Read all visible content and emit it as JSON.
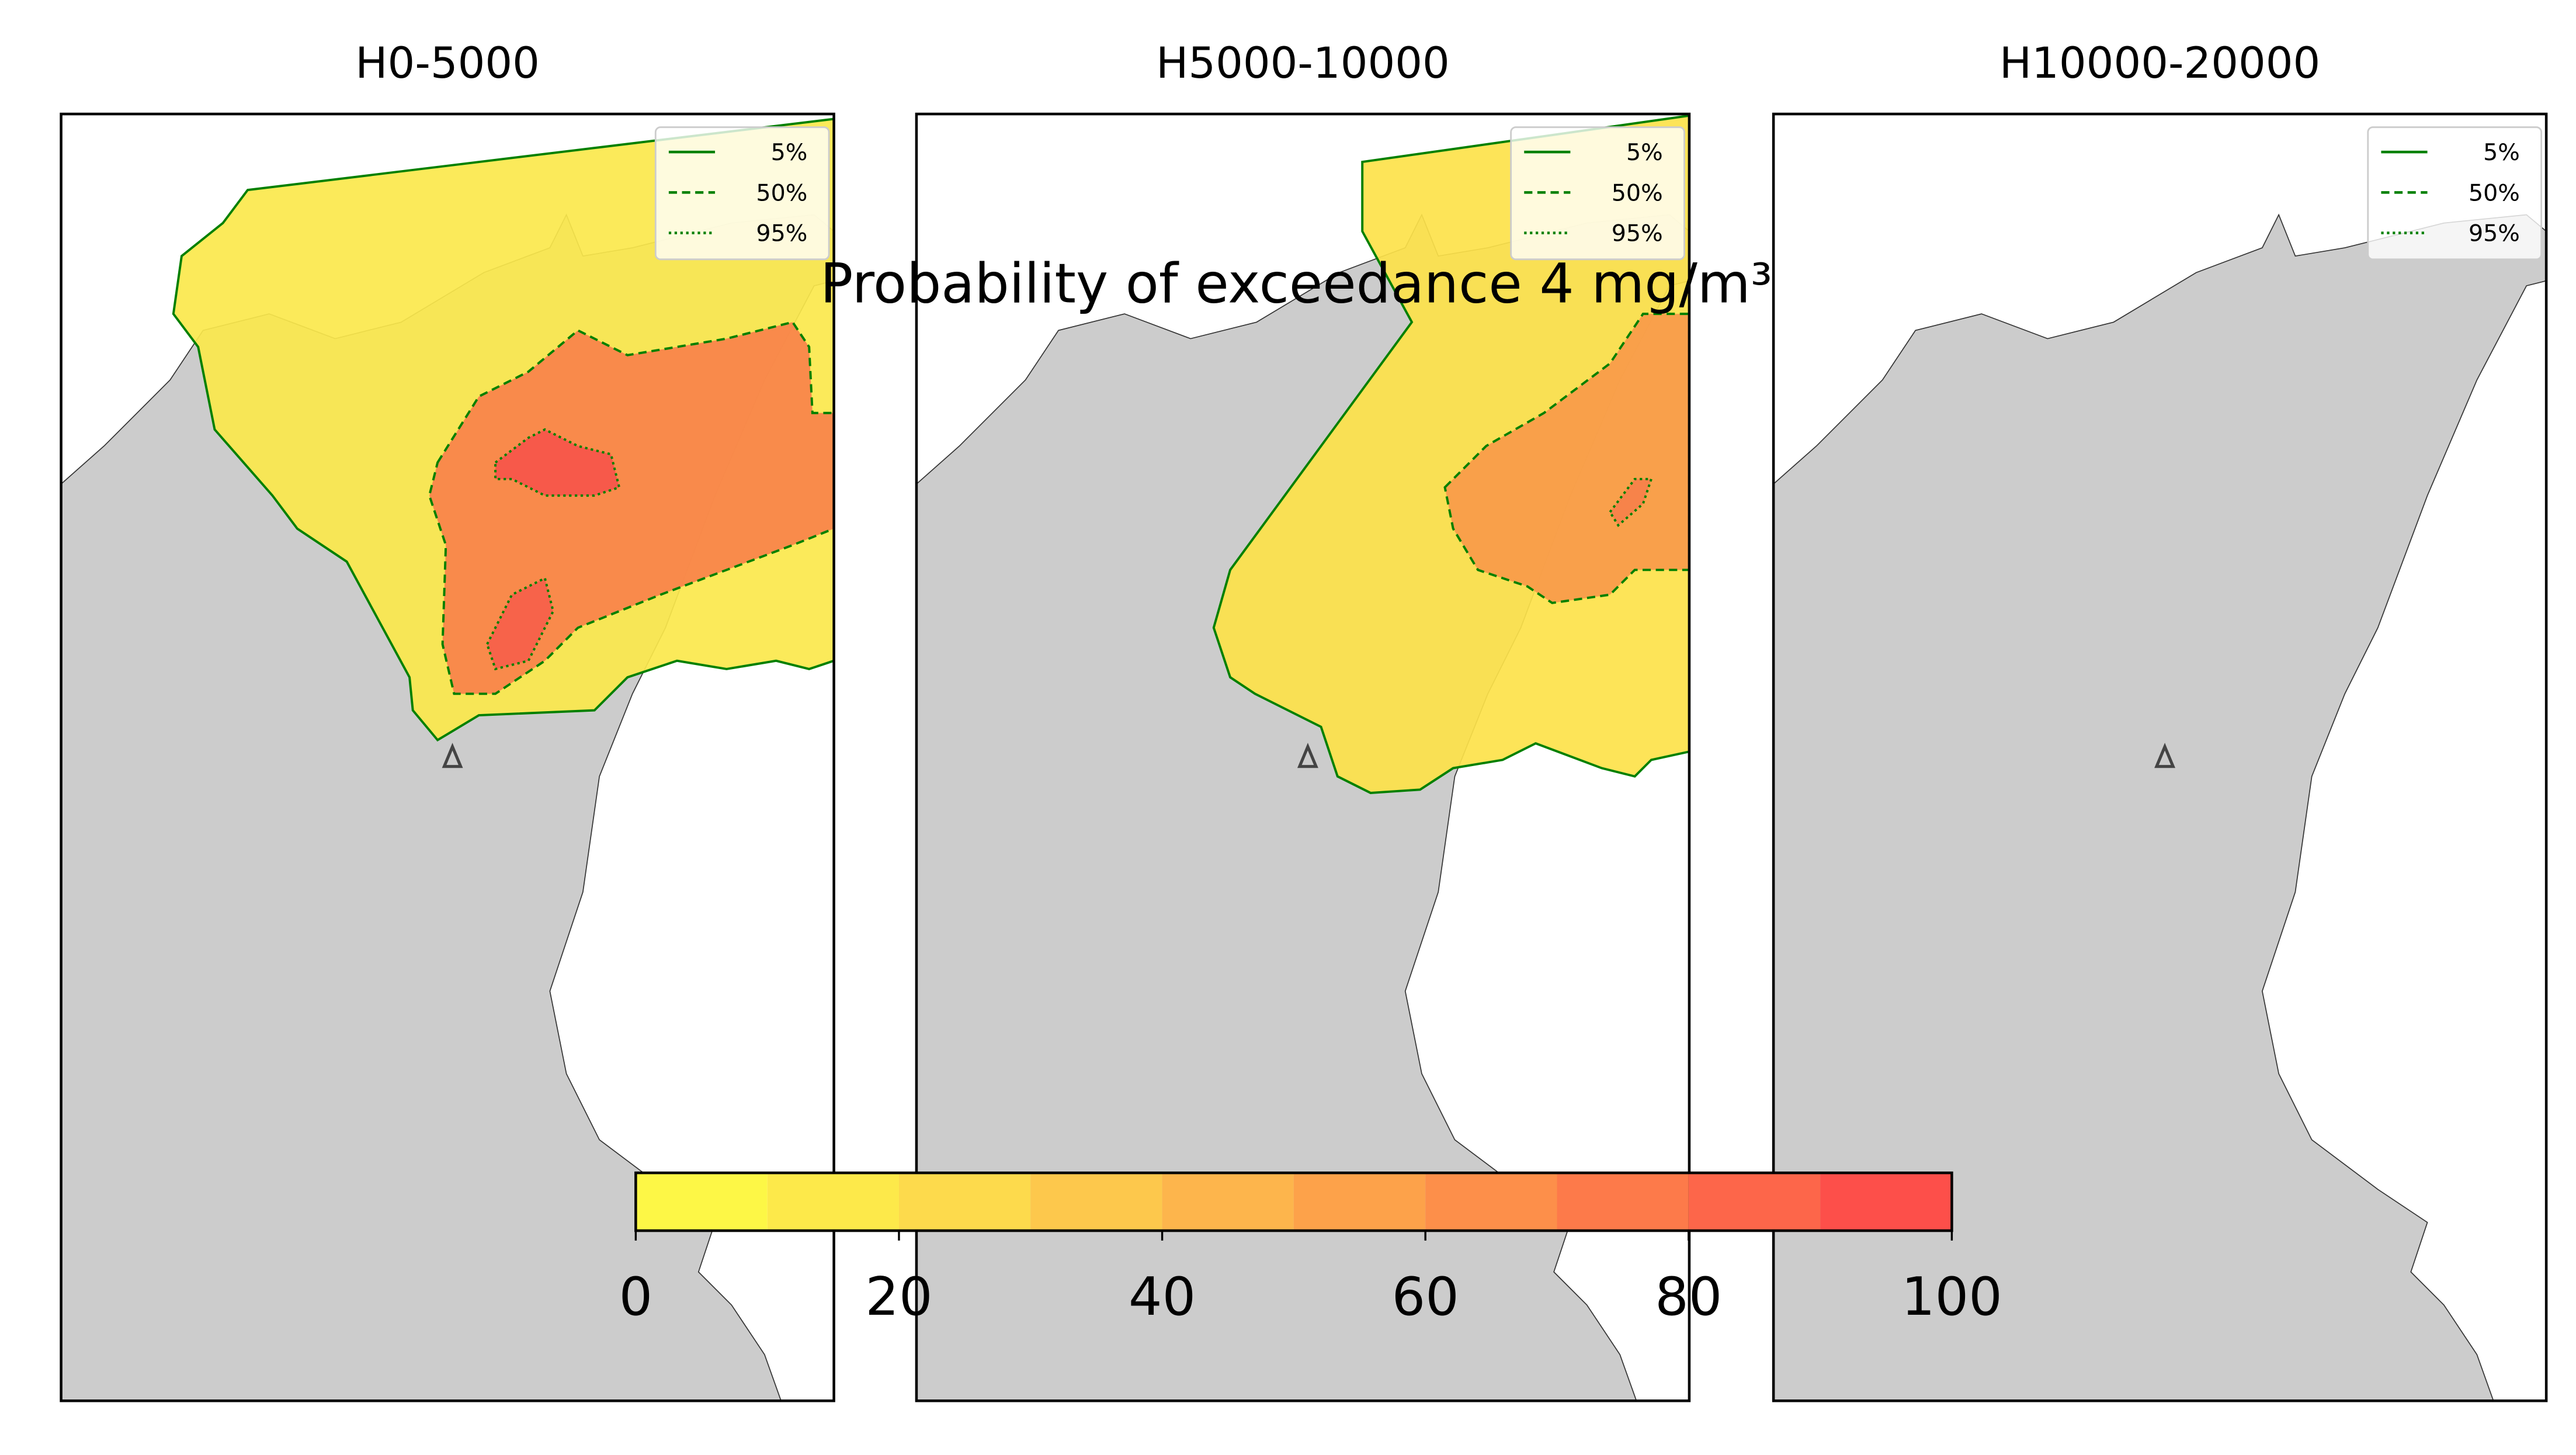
{
  "title": "Probability of exceedance 4 mg/m³",
  "panels": [
    {
      "title": "H0-5000",
      "legend": [
        "5%",
        "50%",
        "95%"
      ]
    },
    {
      "title": "H5000-10000",
      "legend": [
        "5%",
        "50%",
        "95%"
      ]
    },
    {
      "title": "H10000-20000",
      "legend": [
        "5%",
        "50%",
        "95%"
      ]
    }
  ],
  "colorbar": {
    "lim": [
      0,
      100
    ],
    "ticks": [
      0,
      20,
      40,
      60,
      80,
      100
    ],
    "bounds": [
      0,
      10,
      20,
      30,
      40,
      50,
      60,
      70,
      80,
      90,
      100
    ],
    "colors": [
      "#fdf746",
      "#fde94a",
      "#fdda4c",
      "#fdc84c",
      "#fdb54c",
      "#fda24a",
      "#fd8f4a",
      "#fd7a4a",
      "#fd664a",
      "#fd4f4a"
    ]
  }
}
